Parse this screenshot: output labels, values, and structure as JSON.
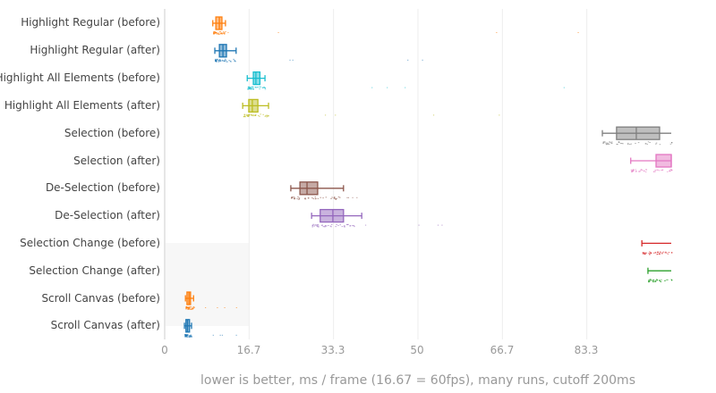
{
  "chart_data": {
    "type": "box",
    "orientation": "horizontal",
    "title": "",
    "xlabel": "lower is better, ms / frame (16.67 = 60fps), many runs, cutoff 200ms",
    "ylabel": "",
    "xlim": [
      0,
      100
    ],
    "x_ticks": [
      "0",
      "16.7",
      "33.3",
      "50",
      "66.7",
      "83.3"
    ],
    "x_tick_values": [
      0,
      16.67,
      33.33,
      50,
      66.67,
      83.33
    ],
    "grid": true,
    "legend": null,
    "series": [
      {
        "name": "Highlight Regular (before)",
        "color": "#ff7f0e",
        "min": 9.5,
        "q1": 10.1,
        "median": 10.8,
        "q3": 11.3,
        "max": 12.0,
        "outliers_max": 86.8
      },
      {
        "name": "Highlight Regular (after)",
        "color": "#1f77b4",
        "min": 9.9,
        "q1": 10.8,
        "median": 11.5,
        "q3": 12.2,
        "max": 14.1,
        "outliers_max": 83.8
      },
      {
        "name": "Highlight All Elements (before)",
        "color": "#17becf",
        "min": 16.3,
        "q1": 17.5,
        "median": 18.0,
        "q3": 18.8,
        "max": 19.8,
        "outliers_max": 90.7
      },
      {
        "name": "Highlight All Elements (after)",
        "color": "#bcbd22",
        "min": 15.4,
        "q1": 16.6,
        "median": 17.3,
        "q3": 18.4,
        "max": 20.5,
        "outliers_max": 94.0
      },
      {
        "name": "Selection (before)",
        "color": "#7f7f7f",
        "min": 86.4,
        "q1": 89.2,
        "median": 93.1,
        "q3": 97.7,
        "max": 100
      },
      {
        "name": "Selection (after)",
        "color": "#e377c2",
        "min": 92.0,
        "q1": 97.0,
        "median": 100,
        "q3": 100,
        "max": 100
      },
      {
        "name": "De-Selection (before)",
        "color": "#8c564b",
        "min": 24.9,
        "q1": 26.7,
        "median": 28.1,
        "q3": 30.2,
        "max": 35.3,
        "outliers_max": 38.2
      },
      {
        "name": "De-Selection (after)",
        "color": "#9467bd",
        "min": 29.0,
        "q1": 30.7,
        "median": 33.2,
        "q3": 35.3,
        "max": 38.9,
        "outliers_max": 66.8
      },
      {
        "name": "Selection Change (before)",
        "color": "#d62728",
        "min": 94.2,
        "q1": 100,
        "median": 100,
        "q3": 100,
        "max": 100
      },
      {
        "name": "Selection Change (after)",
        "color": "#2ca02c",
        "min": 95.4,
        "q1": 100,
        "median": 100,
        "q3": 100,
        "max": 100
      },
      {
        "name": "Scroll Canvas (before)",
        "color": "#ff7f0e",
        "min": 4.1,
        "q1": 4.4,
        "median": 4.8,
        "q3": 5.1,
        "max": 5.7,
        "outliers_max": 15.7
      },
      {
        "name": "Scroll Canvas (after)",
        "color": "#1f77b4",
        "min": 3.9,
        "q1": 4.2,
        "median": 4.5,
        "q3": 4.9,
        "max": 5.3,
        "outliers_max": 14.5
      }
    ]
  },
  "axis": {
    "ticks": [
      "0",
      "16.7",
      "33.3",
      "50",
      "66.7",
      "83.3"
    ],
    "title": "lower is better, ms / frame (16.67 = 60fps), many runs, cutoff 200ms"
  },
  "labels": [
    "Highlight Regular (before)",
    "Highlight Regular (after)",
    "Highlight All Elements (before)",
    "Highlight All Elements (after)",
    "Selection (before)",
    "Selection (after)",
    "De-Selection (before)",
    "De-Selection (after)",
    "Selection Change (before)",
    "Selection Change (after)",
    "Scroll Canvas (before)",
    "Scroll Canvas (after)"
  ]
}
